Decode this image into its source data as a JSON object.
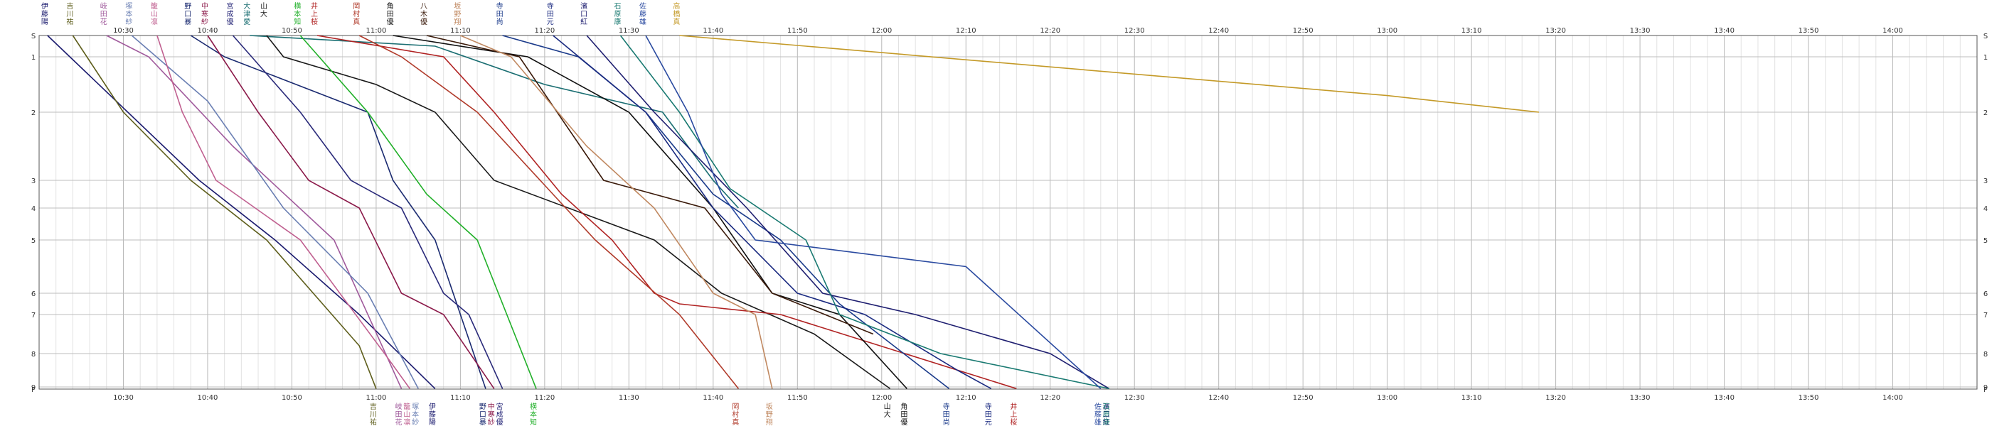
{
  "chart_data": {
    "type": "line",
    "title": "",
    "xlabel": "",
    "ylabel": "",
    "x_range": [
      "10:20",
      "14:10"
    ],
    "x_ticks": [
      "10:30",
      "10:40",
      "10:50",
      "11:00",
      "11:10",
      "11:20",
      "11:30",
      "11:40",
      "11:50",
      "12:00",
      "12:10",
      "12:20",
      "12:30",
      "12:40",
      "12:50",
      "13:00",
      "13:10",
      "13:20",
      "13:30",
      "13:40",
      "13:50",
      "14:00"
    ],
    "stations": [
      "S",
      "1",
      "2",
      "3",
      "4",
      "5",
      "6",
      "7",
      "8",
      "9",
      "F"
    ],
    "grid": true,
    "series": [
      {
        "name": "伊藤陽",
        "color": "#1a1a6e",
        "times": [
          "10:21",
          "10:39",
          "10:48",
          "10:58",
          "11:07"
        ],
        "stations": [
          0,
          3,
          5,
          7,
          9.8
        ]
      },
      {
        "name": "吉川祐",
        "color": "#5e5e1c",
        "times": [
          "10:24",
          "10:30",
          "10:38",
          "10:47",
          "10:58",
          "11:00"
        ],
        "stations": [
          0,
          2,
          3,
          5,
          7.8,
          9.8
        ]
      },
      {
        "name": "岐田花",
        "color": "#a05a9c",
        "times": [
          "10:28",
          "10:33",
          "10:43",
          "10:55",
          "11:03"
        ],
        "stations": [
          0,
          1,
          2.5,
          5,
          9.8
        ]
      },
      {
        "name": "塚本紗",
        "color": "#6a7fb3",
        "times": [
          "10:31",
          "10:40",
          "10:49",
          "10:59",
          "11:05"
        ],
        "stations": [
          0,
          1.8,
          4,
          6,
          9.8
        ]
      },
      {
        "name": "籠山凛",
        "color": "#c06090",
        "times": [
          "10:34",
          "10:37",
          "10:41",
          "10:51",
          "11:01",
          "11:04"
        ],
        "stations": [
          0,
          2,
          3,
          5,
          8,
          9.8
        ]
      },
      {
        "name": "野口暴",
        "color": "#1a2a70",
        "times": [
          "10:38",
          "10:42",
          "10:59",
          "11:02",
          "11:07",
          "11:10",
          "11:13"
        ],
        "stations": [
          0,
          1,
          2,
          3,
          5,
          7,
          9.8
        ]
      },
      {
        "name": "中寒紗",
        "color": "#8b1a4a",
        "times": [
          "10:40",
          "10:46",
          "10:52",
          "10:58",
          "11:03",
          "11:08",
          "11:14"
        ],
        "stations": [
          0,
          2,
          3,
          4,
          6,
          7,
          9.8
        ]
      },
      {
        "name": "宮成優",
        "color": "#2a2a7a",
        "times": [
          "10:43",
          "10:51",
          "10:57",
          "11:03",
          "11:08",
          "11:11",
          "11:15"
        ],
        "stations": [
          0,
          2,
          3,
          4,
          6,
          7,
          9.8
        ]
      },
      {
        "name": "大津愛",
        "color": "#1a6e72",
        "times": [
          "10:45",
          "11:07",
          "11:20",
          "11:34",
          "11:40",
          "11:43"
        ],
        "stations": [
          0,
          0.5,
          1.5,
          2,
          3,
          4
        ]
      },
      {
        "name": "山大",
        "color": "#1a1a1a",
        "times": [
          "10:47",
          "10:49",
          "11:00",
          "11:07",
          "11:14",
          "11:33",
          "11:41",
          "11:52",
          "12:01"
        ],
        "stations": [
          0,
          1,
          1.5,
          2,
          3,
          5,
          6,
          7.5,
          9.8
        ]
      },
      {
        "name": "横本知",
        "color": "#22b02a",
        "times": [
          "10:51",
          "10:59",
          "11:06",
          "11:12",
          "11:19"
        ],
        "stations": [
          0,
          2,
          3.5,
          5,
          9.8
        ]
      },
      {
        "name": "井上桜",
        "color": "#b02222",
        "times": [
          "10:53",
          "11:08",
          "11:14",
          "11:22",
          "11:28",
          "11:33",
          "11:36",
          "11:48",
          "12:16"
        ],
        "stations": [
          0,
          1,
          2,
          3.5,
          5,
          6,
          6.5,
          7,
          9.8
        ]
      },
      {
        "name": "岡村真",
        "color": "#b03a2a",
        "times": [
          "10:58",
          "11:03",
          "11:12",
          "11:26",
          "11:36",
          "11:43"
        ],
        "stations": [
          0,
          1,
          2,
          5,
          7,
          9.8
        ]
      },
      {
        "name": "角田優",
        "color": "#111111",
        "times": [
          "11:02",
          "11:18",
          "11:30",
          "11:40",
          "11:47",
          "11:55",
          "12:03"
        ],
        "stations": [
          0,
          1,
          2,
          4,
          6,
          7,
          9.8
        ]
      },
      {
        "name": "八木優",
        "color": "#3a1a0a",
        "times": [
          "11:06",
          "11:17",
          "11:27",
          "11:39",
          "11:47",
          "11:59"
        ],
        "stations": [
          0,
          1,
          3,
          4,
          6,
          7.5
        ]
      },
      {
        "name": "坂野翔",
        "color": "#c08860",
        "times": [
          "11:10",
          "11:16",
          "11:25",
          "11:33",
          "11:40",
          "11:45",
          "11:47"
        ],
        "stations": [
          0,
          1,
          2.5,
          4,
          6,
          7,
          9.8
        ]
      },
      {
        "name": "寺田尚",
        "color": "#1a3a8a",
        "times": [
          "11:15",
          "11:24",
          "11:32",
          "11:40",
          "11:48",
          "11:55",
          "12:08"
        ],
        "stations": [
          0,
          1,
          2,
          3.5,
          5,
          6.5,
          9.8
        ]
      },
      {
        "name": "寺田元",
        "color": "#1a2a80",
        "times": [
          "11:21",
          "11:32",
          "11:40",
          "11:50",
          "11:58",
          "12:09",
          "12:13"
        ],
        "stations": [
          0,
          2,
          4,
          6,
          7,
          8.5,
          9.8
        ]
      },
      {
        "name": "濱口紅",
        "color": "#1e1e70",
        "times": [
          "11:25",
          "11:33",
          "11:44",
          "11:53",
          "12:04",
          "12:20",
          "12:27"
        ],
        "stations": [
          0,
          2,
          4,
          6,
          7,
          8,
          9.8
        ]
      },
      {
        "name": "石原康",
        "color": "#1a7a72",
        "times": [
          "11:29",
          "11:36",
          "11:42",
          "11:51",
          "11:55",
          "12:07",
          "12:27"
        ],
        "stations": [
          0,
          2,
          3.3,
          5,
          7,
          8,
          9.8
        ]
      },
      {
        "name": "佐藤雄",
        "color": "#2a4aa0",
        "times": [
          "11:32",
          "11:37",
          "11:41",
          "11:45",
          "12:10",
          "12:26"
        ],
        "stations": [
          0,
          2,
          3.5,
          5,
          5.5,
          9.8
        ]
      },
      {
        "name": "高橋真",
        "color": "#c49a28",
        "times": [
          "11:36",
          "11:51",
          "13:00",
          "13:18"
        ],
        "stations": [
          0,
          0.5,
          1.7,
          2
        ]
      }
    ]
  },
  "labels": {
    "top_times": [
      "10:30",
      "10:40",
      "10:50",
      "11:00",
      "11:10",
      "11:20",
      "11:30",
      "11:40",
      "11:50",
      "12:00",
      "12:10",
      "12:20",
      "12:30",
      "12:40",
      "12:50",
      "13:00",
      "13:10",
      "13:20",
      "13:30",
      "13:40",
      "13:50",
      "14:00"
    ],
    "bottom_times": [
      "10:30",
      "10:40",
      "10:50",
      "11:00",
      "11:10",
      "11:20",
      "11:30",
      "11:40",
      "11:50",
      "12:00",
      "12:10",
      "12:20",
      "12:30",
      "12:40",
      "12:50",
      "13:00",
      "13:10",
      "13:20",
      "13:30",
      "13:40",
      "13:50",
      "14:00"
    ]
  }
}
